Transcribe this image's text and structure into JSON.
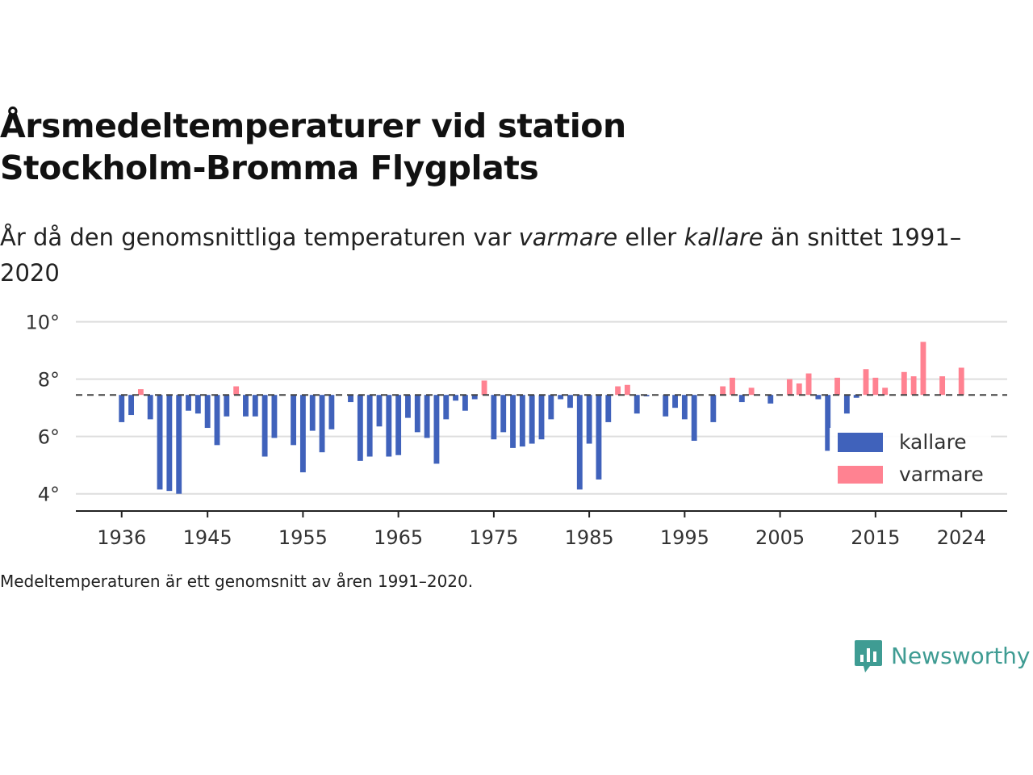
{
  "subtitle": {
    "before": "År då den genomsnittliga temperaturen var ",
    "warm_word": "varmare",
    "middle": " eller ",
    "cold_word": "kallare",
    "after": " än snittet 1991–2020"
  },
  "note": "Medeltemperaturen är ett genomsnitt av åren 1991–2020.",
  "brand": {
    "name": "Newsworthy",
    "icon": "newsworthy-logo-icon",
    "color": "#3f9c93"
  },
  "colors": {
    "cold": "#4062bb",
    "warm": "#ff8291",
    "reference_line": "#444444",
    "grid": "#dddddd",
    "axis": "#222222"
  },
  "chart_data": {
    "type": "bar",
    "title": "Årsmedeltemperaturer vid station Stockholm-Bromma Flygplats",
    "reference": 7.45,
    "ylim": [
      3.4,
      10.3
    ],
    "yticks": [
      4,
      6,
      8,
      10
    ],
    "ytick_labels": [
      "4°",
      "6°",
      "8°",
      "10°"
    ],
    "xticks": [
      1936,
      1945,
      1955,
      1965,
      1975,
      1985,
      1995,
      2005,
      2015,
      2024
    ],
    "xlim": [
      1931.2,
      2028.8
    ],
    "grid": true,
    "legend_position": "right",
    "series": [
      {
        "name": "kallare",
        "color": "#4062bb"
      },
      {
        "name": "varmare",
        "color": "#ff8291"
      }
    ],
    "x": [
      1936,
      1937,
      1938,
      1939,
      1940,
      1941,
      1942,
      1943,
      1944,
      1945,
      1946,
      1947,
      1948,
      1949,
      1950,
      1951,
      1952,
      1954,
      1955,
      1956,
      1957,
      1958,
      1960,
      1961,
      1962,
      1963,
      1964,
      1965,
      1966,
      1967,
      1968,
      1969,
      1970,
      1971,
      1972,
      1973,
      1974,
      1975,
      1976,
      1977,
      1978,
      1979,
      1980,
      1981,
      1982,
      1983,
      1984,
      1985,
      1986,
      1987,
      1988,
      1989,
      1990,
      1991,
      1993,
      1994,
      1995,
      1996,
      1998,
      1999,
      2000,
      2001,
      2002,
      2004,
      2006,
      2007,
      2008,
      2009,
      2010,
      2011,
      2012,
      2013,
      2014,
      2015,
      2016,
      2018,
      2019,
      2020,
      2022,
      2024
    ],
    "values": [
      6.5,
      6.75,
      7.65,
      6.6,
      4.15,
      4.1,
      4.0,
      6.9,
      6.8,
      6.3,
      5.7,
      6.7,
      7.75,
      6.7,
      6.7,
      5.3,
      5.95,
      5.7,
      4.75,
      6.2,
      5.45,
      6.25,
      7.2,
      5.15,
      5.3,
      6.35,
      5.3,
      5.35,
      6.65,
      6.15,
      5.95,
      5.05,
      6.6,
      7.25,
      6.9,
      7.3,
      7.95,
      5.9,
      6.15,
      5.6,
      5.65,
      5.75,
      5.9,
      6.6,
      7.3,
      7.0,
      4.15,
      5.75,
      4.5,
      6.5,
      7.75,
      7.8,
      6.8,
      7.4,
      6.7,
      7.0,
      6.6,
      5.85,
      6.5,
      7.75,
      8.05,
      7.2,
      7.7,
      7.15,
      8.0,
      7.85,
      8.2,
      7.3,
      5.5,
      8.05,
      6.8,
      7.35,
      8.35,
      8.05,
      7.7,
      8.25,
      8.1,
      9.3,
      8.1,
      8.4
    ]
  }
}
